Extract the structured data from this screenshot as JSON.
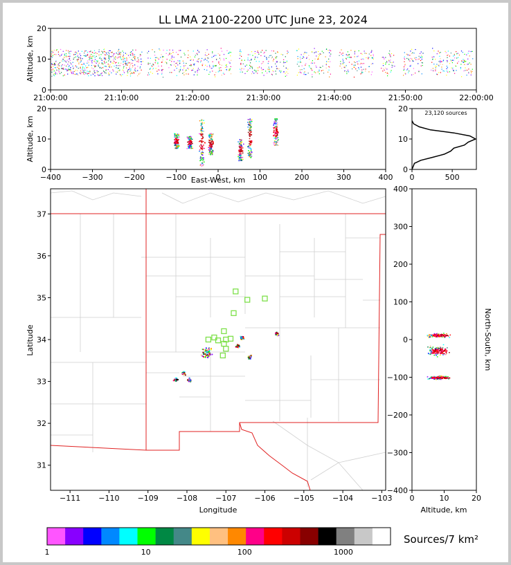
{
  "title": "LL LMA 2100-2200 UTC June 23, 2024",
  "colorbar_label": "Sources/7 km²",
  "source_count_label": "23,120 sources",
  "chart_data": [
    {
      "type": "scatter",
      "panel": "altitude-vs-time",
      "ylabel": "Altitude, km",
      "xlabel": "",
      "x_ticks": [
        "21:00:00",
        "21:10:00",
        "21:20:00",
        "21:30:00",
        "21:40:00",
        "21:50:00",
        "22:00:00"
      ],
      "x_range_min": [
        0,
        60
      ],
      "ylim": [
        0,
        20
      ],
      "y_ticks": [
        0,
        10,
        20
      ],
      "activity_minutes": [
        0.5,
        1.5,
        2.5,
        3.5,
        4.5,
        5.5,
        6.5,
        7.5,
        8.5,
        9.5,
        10.5,
        11.5,
        12.5,
        14,
        15,
        16,
        17,
        18,
        19,
        20,
        21,
        22,
        23,
        24,
        25,
        27,
        28,
        29,
        30,
        31,
        32,
        33,
        35,
        36,
        37,
        38,
        39,
        41,
        42,
        43,
        44,
        45,
        47,
        48,
        50,
        51,
        52,
        54,
        55,
        56,
        57,
        58,
        59
      ],
      "typical_altitude_km": [
        5,
        13
      ]
    },
    {
      "type": "scatter",
      "panel": "altitude-vs-east-west",
      "xlabel": "East-West, km",
      "ylabel": "Altitude, km",
      "xlim": [
        -400,
        400
      ],
      "x_ticks": [
        -400,
        -300,
        -200,
        -100,
        0,
        100,
        200,
        300,
        400
      ],
      "ylim": [
        0,
        20
      ],
      "y_ticks": [
        0,
        10,
        20
      ],
      "clusters_km": [
        {
          "x": -100,
          "alt": [
            7,
            12
          ]
        },
        {
          "x": -68,
          "alt": [
            7,
            11
          ]
        },
        {
          "x": -40,
          "alt": [
            1,
            17
          ]
        },
        {
          "x": -18,
          "alt": [
            5,
            12
          ]
        },
        {
          "x": 52,
          "alt": [
            3,
            10
          ]
        },
        {
          "x": 75,
          "alt": [
            4,
            17
          ]
        },
        {
          "x": 137,
          "alt": [
            8,
            17
          ]
        }
      ]
    },
    {
      "type": "line",
      "panel": "altitude-histogram",
      "xlim": [
        0,
        800
      ],
      "x_ticks": [
        0,
        500
      ],
      "ylim": [
        0,
        20
      ],
      "y_ticks": [
        0,
        10,
        20
      ],
      "altitude_km": [
        0,
        2,
        3,
        4,
        5,
        6,
        7,
        8,
        9,
        10,
        11,
        12,
        13,
        14,
        15,
        16
      ],
      "sources": [
        0,
        30,
        110,
        260,
        400,
        480,
        520,
        650,
        700,
        790,
        720,
        520,
        230,
        90,
        20,
        0
      ]
    },
    {
      "type": "scatter",
      "panel": "plan-view",
      "xlabel": "Longitude",
      "ylabel": "Latitude",
      "xlim": [
        -111.5,
        -102.9
      ],
      "ylim": [
        30.4,
        37.6
      ],
      "x_ticks": [
        -111,
        -110,
        -109,
        -108,
        -107,
        -106,
        -105,
        -104,
        -103
      ],
      "y_ticks": [
        31,
        32,
        33,
        34,
        35,
        36,
        37
      ],
      "source_clusters": [
        {
          "lon": -107.5,
          "lat": 33.7
        },
        {
          "lon": -106.6,
          "lat": 34.05
        },
        {
          "lon": -106.4,
          "lat": 33.6
        },
        {
          "lon": -105.7,
          "lat": 34.15
        },
        {
          "lon": -108.1,
          "lat": 33.2
        },
        {
          "lon": -108.3,
          "lat": 33.05
        },
        {
          "lon": -107.95,
          "lat": 33.05
        },
        {
          "lon": -106.7,
          "lat": 33.85
        }
      ],
      "stations": [
        {
          "lon": -106.75,
          "lat": 35.15
        },
        {
          "lon": -106.45,
          "lat": 34.95
        },
        {
          "lon": -106.0,
          "lat": 34.98
        },
        {
          "lon": -106.8,
          "lat": 34.63
        },
        {
          "lon": -107.05,
          "lat": 34.2
        },
        {
          "lon": -107.3,
          "lat": 34.05
        },
        {
          "lon": -107.45,
          "lat": 34.0
        },
        {
          "lon": -107.2,
          "lat": 33.98
        },
        {
          "lon": -107.0,
          "lat": 34.0
        },
        {
          "lon": -106.88,
          "lat": 34.02
        },
        {
          "lon": -107.05,
          "lat": 33.9
        },
        {
          "lon": -107.0,
          "lat": 33.78
        },
        {
          "lon": -107.08,
          "lat": 33.62
        }
      ]
    },
    {
      "type": "scatter",
      "panel": "north-south-vs-altitude",
      "xlabel": "Altitude, km",
      "ylabel": "North-South, km",
      "xlim": [
        0,
        20
      ],
      "x_ticks": [
        0,
        10,
        20
      ],
      "ylim": [
        -400,
        400
      ],
      "y_ticks": [
        -400,
        -300,
        -200,
        -100,
        0,
        100,
        200,
        300,
        400
      ]
    },
    {
      "type": "heatmap",
      "panel": "colorbar",
      "tick_labels": [
        "1",
        "10",
        "100",
        "1000"
      ],
      "tick_values": [
        1,
        10,
        100,
        1000
      ],
      "colors": [
        "#ff55ff",
        "#8800ff",
        "#0000ff",
        "#0088ff",
        "#00ffff",
        "#00ff00",
        "#008844",
        "#448888",
        "#ffff00",
        "#ffc080",
        "#ff8800",
        "#ff0088",
        "#ff0000",
        "#cc0000",
        "#880000",
        "#000000",
        "#808080",
        "#c8c8c8",
        "#ffffff"
      ]
    }
  ]
}
